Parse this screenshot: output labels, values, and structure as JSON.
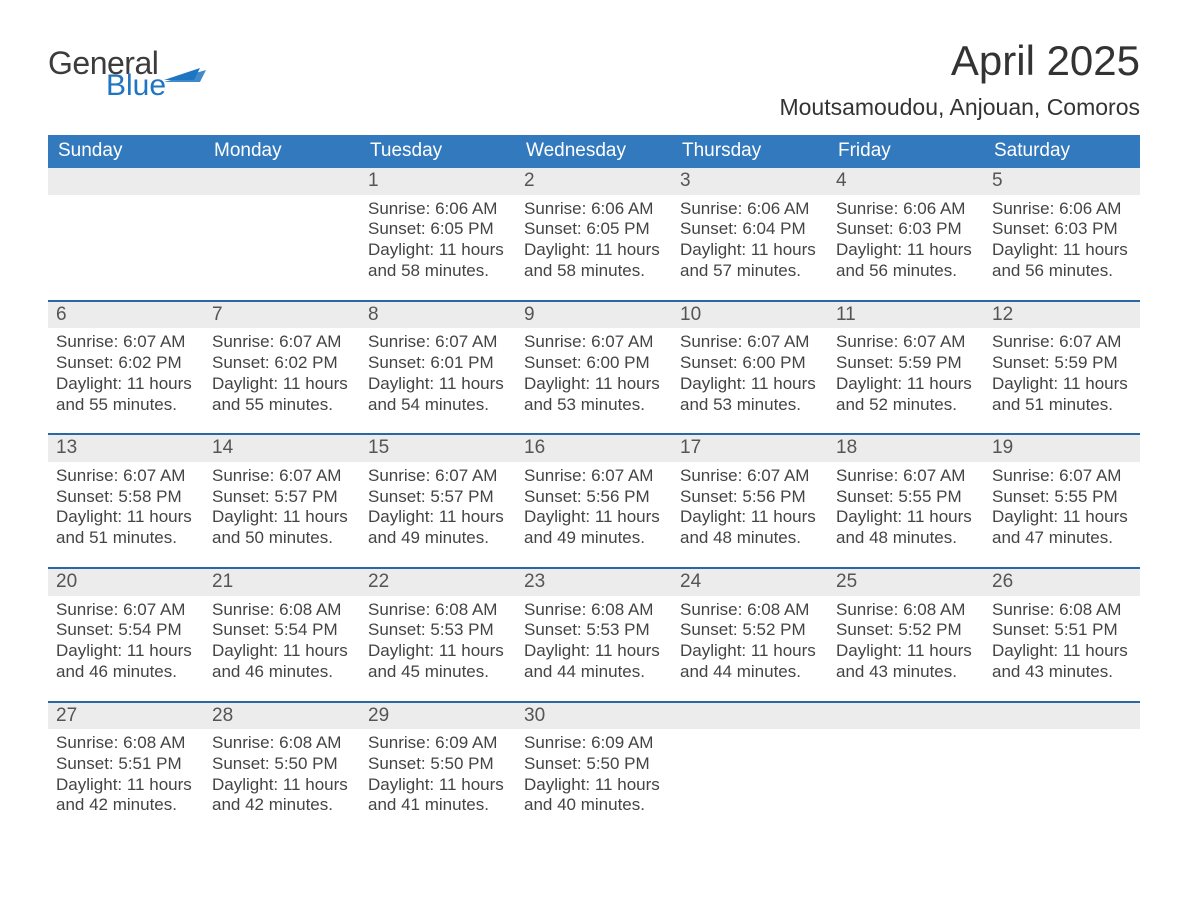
{
  "brand": {
    "line1": "General",
    "line2": "Blue",
    "logo_color": "#1f75c2"
  },
  "title": {
    "month": "April 2025",
    "location": "Moutsamoudou, Anjouan, Comoros"
  },
  "colors": {
    "header_blue": "#3279bd",
    "row_sep_blue": "#2a67a5",
    "daynum_bg": "#ececec",
    "background": "#ffffff"
  },
  "days_of_week": [
    "Sunday",
    "Monday",
    "Tuesday",
    "Wednesday",
    "Thursday",
    "Friday",
    "Saturday"
  ],
  "weeks": [
    [
      null,
      null,
      {
        "n": "1",
        "sunrise": "Sunrise: 6:06 AM",
        "sunset": "Sunset: 6:05 PM",
        "daylight": "Daylight: 11 hours and 58 minutes."
      },
      {
        "n": "2",
        "sunrise": "Sunrise: 6:06 AM",
        "sunset": "Sunset: 6:05 PM",
        "daylight": "Daylight: 11 hours and 58 minutes."
      },
      {
        "n": "3",
        "sunrise": "Sunrise: 6:06 AM",
        "sunset": "Sunset: 6:04 PM",
        "daylight": "Daylight: 11 hours and 57 minutes."
      },
      {
        "n": "4",
        "sunrise": "Sunrise: 6:06 AM",
        "sunset": "Sunset: 6:03 PM",
        "daylight": "Daylight: 11 hours and 56 minutes."
      },
      {
        "n": "5",
        "sunrise": "Sunrise: 6:06 AM",
        "sunset": "Sunset: 6:03 PM",
        "daylight": "Daylight: 11 hours and 56 minutes."
      }
    ],
    [
      {
        "n": "6",
        "sunrise": "Sunrise: 6:07 AM",
        "sunset": "Sunset: 6:02 PM",
        "daylight": "Daylight: 11 hours and 55 minutes."
      },
      {
        "n": "7",
        "sunrise": "Sunrise: 6:07 AM",
        "sunset": "Sunset: 6:02 PM",
        "daylight": "Daylight: 11 hours and 55 minutes."
      },
      {
        "n": "8",
        "sunrise": "Sunrise: 6:07 AM",
        "sunset": "Sunset: 6:01 PM",
        "daylight": "Daylight: 11 hours and 54 minutes."
      },
      {
        "n": "9",
        "sunrise": "Sunrise: 6:07 AM",
        "sunset": "Sunset: 6:00 PM",
        "daylight": "Daylight: 11 hours and 53 minutes."
      },
      {
        "n": "10",
        "sunrise": "Sunrise: 6:07 AM",
        "sunset": "Sunset: 6:00 PM",
        "daylight": "Daylight: 11 hours and 53 minutes."
      },
      {
        "n": "11",
        "sunrise": "Sunrise: 6:07 AM",
        "sunset": "Sunset: 5:59 PM",
        "daylight": "Daylight: 11 hours and 52 minutes."
      },
      {
        "n": "12",
        "sunrise": "Sunrise: 6:07 AM",
        "sunset": "Sunset: 5:59 PM",
        "daylight": "Daylight: 11 hours and 51 minutes."
      }
    ],
    [
      {
        "n": "13",
        "sunrise": "Sunrise: 6:07 AM",
        "sunset": "Sunset: 5:58 PM",
        "daylight": "Daylight: 11 hours and 51 minutes."
      },
      {
        "n": "14",
        "sunrise": "Sunrise: 6:07 AM",
        "sunset": "Sunset: 5:57 PM",
        "daylight": "Daylight: 11 hours and 50 minutes."
      },
      {
        "n": "15",
        "sunrise": "Sunrise: 6:07 AM",
        "sunset": "Sunset: 5:57 PM",
        "daylight": "Daylight: 11 hours and 49 minutes."
      },
      {
        "n": "16",
        "sunrise": "Sunrise: 6:07 AM",
        "sunset": "Sunset: 5:56 PM",
        "daylight": "Daylight: 11 hours and 49 minutes."
      },
      {
        "n": "17",
        "sunrise": "Sunrise: 6:07 AM",
        "sunset": "Sunset: 5:56 PM",
        "daylight": "Daylight: 11 hours and 48 minutes."
      },
      {
        "n": "18",
        "sunrise": "Sunrise: 6:07 AM",
        "sunset": "Sunset: 5:55 PM",
        "daylight": "Daylight: 11 hours and 48 minutes."
      },
      {
        "n": "19",
        "sunrise": "Sunrise: 6:07 AM",
        "sunset": "Sunset: 5:55 PM",
        "daylight": "Daylight: 11 hours and 47 minutes."
      }
    ],
    [
      {
        "n": "20",
        "sunrise": "Sunrise: 6:07 AM",
        "sunset": "Sunset: 5:54 PM",
        "daylight": "Daylight: 11 hours and 46 minutes."
      },
      {
        "n": "21",
        "sunrise": "Sunrise: 6:08 AM",
        "sunset": "Sunset: 5:54 PM",
        "daylight": "Daylight: 11 hours and 46 minutes."
      },
      {
        "n": "22",
        "sunrise": "Sunrise: 6:08 AM",
        "sunset": "Sunset: 5:53 PM",
        "daylight": "Daylight: 11 hours and 45 minutes."
      },
      {
        "n": "23",
        "sunrise": "Sunrise: 6:08 AM",
        "sunset": "Sunset: 5:53 PM",
        "daylight": "Daylight: 11 hours and 44 minutes."
      },
      {
        "n": "24",
        "sunrise": "Sunrise: 6:08 AM",
        "sunset": "Sunset: 5:52 PM",
        "daylight": "Daylight: 11 hours and 44 minutes."
      },
      {
        "n": "25",
        "sunrise": "Sunrise: 6:08 AM",
        "sunset": "Sunset: 5:52 PM",
        "daylight": "Daylight: 11 hours and 43 minutes."
      },
      {
        "n": "26",
        "sunrise": "Sunrise: 6:08 AM",
        "sunset": "Sunset: 5:51 PM",
        "daylight": "Daylight: 11 hours and 43 minutes."
      }
    ],
    [
      {
        "n": "27",
        "sunrise": "Sunrise: 6:08 AM",
        "sunset": "Sunset: 5:51 PM",
        "daylight": "Daylight: 11 hours and 42 minutes."
      },
      {
        "n": "28",
        "sunrise": "Sunrise: 6:08 AM",
        "sunset": "Sunset: 5:50 PM",
        "daylight": "Daylight: 11 hours and 42 minutes."
      },
      {
        "n": "29",
        "sunrise": "Sunrise: 6:09 AM",
        "sunset": "Sunset: 5:50 PM",
        "daylight": "Daylight: 11 hours and 41 minutes."
      },
      {
        "n": "30",
        "sunrise": "Sunrise: 6:09 AM",
        "sunset": "Sunset: 5:50 PM",
        "daylight": "Daylight: 11 hours and 40 minutes."
      },
      null,
      null,
      null
    ]
  ]
}
